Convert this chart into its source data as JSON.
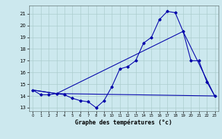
{
  "xlabel": "Graphe des températures (°c)",
  "bg_color": "#cce8ee",
  "grid_color": "#aacccc",
  "line_color": "#0000aa",
  "xlim": [
    -0.5,
    23.5
  ],
  "ylim": [
    12.7,
    21.7
  ],
  "xticks": [
    0,
    1,
    2,
    3,
    4,
    5,
    6,
    7,
    8,
    9,
    10,
    11,
    12,
    13,
    14,
    15,
    16,
    17,
    18,
    19,
    20,
    21,
    22,
    23
  ],
  "yticks": [
    13,
    14,
    15,
    16,
    17,
    18,
    19,
    20,
    21
  ],
  "line1_x": [
    0,
    1,
    2,
    3,
    4,
    5,
    6,
    7,
    8,
    9,
    10,
    11,
    12,
    13,
    14,
    15,
    16,
    17,
    18,
    19,
    20,
    21,
    22,
    23
  ],
  "line1_y": [
    14.5,
    14.1,
    14.1,
    14.2,
    14.1,
    13.8,
    13.6,
    13.5,
    13.0,
    13.6,
    14.8,
    16.3,
    16.5,
    17.0,
    18.5,
    19.0,
    20.5,
    21.2,
    21.1,
    19.5,
    17.0,
    17.0,
    15.2,
    14.0
  ],
  "line2_x": [
    0,
    3,
    23
  ],
  "line2_y": [
    14.5,
    14.2,
    14.0
  ],
  "line3_x": [
    0,
    3,
    19,
    23
  ],
  "line3_y": [
    14.5,
    14.2,
    19.5,
    14.0
  ]
}
